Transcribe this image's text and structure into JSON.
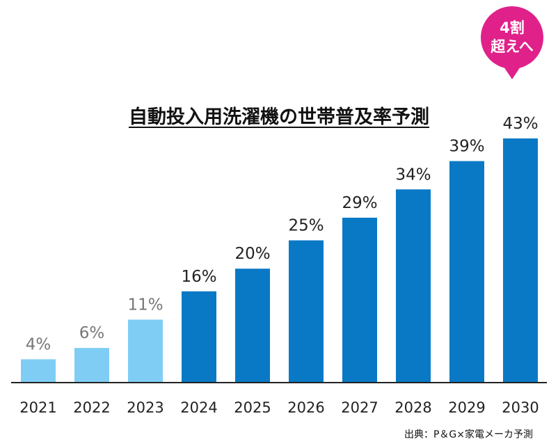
{
  "chart_data": {
    "type": "bar",
    "title": "自動投入用洗濯機の世帯普及率予測",
    "categories": [
      "2021",
      "2022",
      "2023",
      "2024",
      "2025",
      "2026",
      "2027",
      "2028",
      "2029",
      "2030"
    ],
    "values": [
      4,
      6,
      11,
      16,
      20,
      25,
      29,
      34,
      39,
      43
    ],
    "data_labels": [
      "4%",
      "6%",
      "11%",
      "16%",
      "20%",
      "25%",
      "29%",
      "34%",
      "39%",
      "43%"
    ],
    "colors": [
      "#7fcdf5",
      "#7fcdf5",
      "#7fcdf5",
      "#0a79c5",
      "#0a79c5",
      "#0a79c5",
      "#0a79c5",
      "#0a79c5",
      "#0a79c5",
      "#0a79c5"
    ],
    "label_colors": [
      "#777777",
      "#777777",
      "#777777",
      "#222222",
      "#222222",
      "#222222",
      "#222222",
      "#222222",
      "#222222",
      "#222222"
    ],
    "ylim": [
      0,
      43
    ],
    "grid": false
  },
  "callout": {
    "line1": "4割",
    "line2": "超えへ",
    "color": "#e0218a"
  },
  "source": "出典：P＆G×家電メーカ予測"
}
